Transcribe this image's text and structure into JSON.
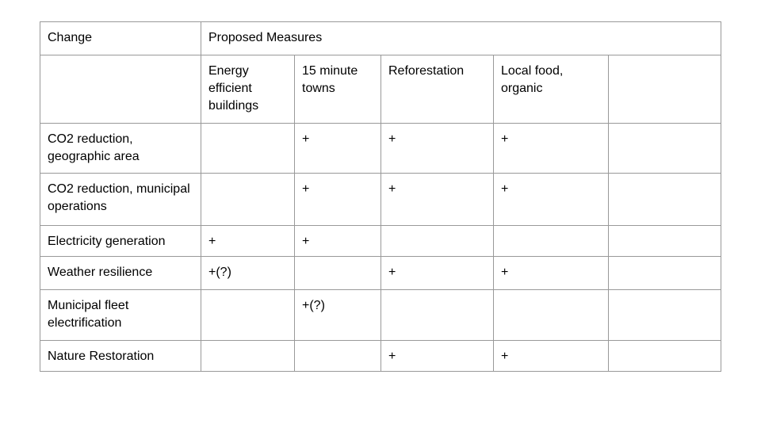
{
  "table": {
    "corner_header": "Change",
    "group_header": "Proposed Measures",
    "measure_columns": [
      "Energy efficient buildings",
      "15 minute towns",
      "Reforestation",
      "Local food, organic",
      ""
    ],
    "rows": [
      {
        "change": "CO2 reduction, geographic area",
        "cells": [
          "",
          "+",
          "+",
          "+",
          ""
        ]
      },
      {
        "change": "CO2 reduction, municipal operations",
        "cells": [
          "",
          "+",
          "+",
          "+",
          ""
        ]
      },
      {
        "change": "Electricity generation",
        "cells": [
          "+",
          "+",
          "",
          "",
          ""
        ]
      },
      {
        "change": "Weather resilience",
        "cells": [
          "+(?)",
          "",
          "+",
          "+",
          ""
        ]
      },
      {
        "change": "Municipal fleet electrification",
        "cells": [
          "",
          "+(?)",
          "",
          "",
          ""
        ]
      },
      {
        "change": "Nature Restoration",
        "cells": [
          "",
          "",
          "+",
          "+",
          ""
        ]
      }
    ],
    "colors": {
      "border": "#999999",
      "text": "#000000",
      "background": "#ffffff"
    }
  }
}
